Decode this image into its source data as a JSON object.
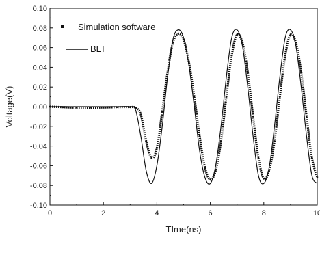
{
  "chart_data": {
    "type": "line",
    "xlabel": "TIme(ns)",
    "ylabel": "Voltage(V)",
    "xlim": [
      0,
      10
    ],
    "ylim": [
      -0.1,
      0.1
    ],
    "x_ticks": [
      "0",
      "2",
      "4",
      "6",
      "8",
      "10"
    ],
    "y_ticks": [
      "-0.10",
      "-0.08",
      "-0.06",
      "-0.04",
      "-0.02",
      "0.00",
      "0.02",
      "0.04",
      "0.06",
      "0.08",
      "0.10"
    ],
    "grid": false,
    "legend": "top-left",
    "series": [
      {
        "name": "Simulation software",
        "style": "dotted-markers",
        "color": "#111111",
        "points": [
          [
            0.0,
            0.0
          ],
          [
            0.5,
            -0.0005
          ],
          [
            1.0,
            -0.001
          ],
          [
            1.5,
            -0.001
          ],
          [
            2.0,
            -0.0008
          ],
          [
            2.5,
            -0.0005
          ],
          [
            3.0,
            -0.0004
          ],
          [
            3.2,
            -0.001
          ],
          [
            3.4,
            -0.008
          ],
          [
            3.6,
            -0.035
          ],
          [
            3.8,
            -0.052
          ],
          [
            4.0,
            -0.042
          ],
          [
            4.2,
            -0.005
          ],
          [
            4.4,
            0.035
          ],
          [
            4.6,
            0.065
          ],
          [
            4.8,
            0.074
          ],
          [
            5.0,
            0.068
          ],
          [
            5.2,
            0.045
          ],
          [
            5.4,
            0.01
          ],
          [
            5.6,
            -0.03
          ],
          [
            5.8,
            -0.062
          ],
          [
            6.0,
            -0.074
          ],
          [
            6.2,
            -0.065
          ],
          [
            6.4,
            -0.035
          ],
          [
            6.6,
            0.01
          ],
          [
            6.8,
            0.052
          ],
          [
            7.0,
            0.073
          ],
          [
            7.2,
            0.065
          ],
          [
            7.4,
            0.035
          ],
          [
            7.6,
            -0.01
          ],
          [
            7.8,
            -0.052
          ],
          [
            8.0,
            -0.073
          ],
          [
            8.2,
            -0.065
          ],
          [
            8.4,
            -0.035
          ],
          [
            8.6,
            0.01
          ],
          [
            8.8,
            0.052
          ],
          [
            9.0,
            0.073
          ],
          [
            9.2,
            0.065
          ],
          [
            9.4,
            0.035
          ],
          [
            9.6,
            -0.01
          ],
          [
            9.8,
            -0.052
          ],
          [
            10.0,
            -0.072
          ]
        ]
      },
      {
        "name": "BLT",
        "style": "solid",
        "color": "#111111",
        "points": [
          [
            0.0,
            0.0
          ],
          [
            0.5,
            0.0
          ],
          [
            1.0,
            0.0
          ],
          [
            1.5,
            0.0
          ],
          [
            2.0,
            0.0
          ],
          [
            2.5,
            0.0
          ],
          [
            3.0,
            0.0
          ],
          [
            3.2,
            -0.003
          ],
          [
            3.4,
            -0.03
          ],
          [
            3.6,
            -0.065
          ],
          [
            3.8,
            -0.078
          ],
          [
            4.0,
            -0.06
          ],
          [
            4.2,
            -0.02
          ],
          [
            4.4,
            0.03
          ],
          [
            4.6,
            0.068
          ],
          [
            4.8,
            0.078
          ],
          [
            5.0,
            0.07
          ],
          [
            5.2,
            0.042
          ],
          [
            5.4,
            0.0
          ],
          [
            5.6,
            -0.045
          ],
          [
            5.8,
            -0.072
          ],
          [
            6.0,
            -0.078
          ],
          [
            6.2,
            -0.06
          ],
          [
            6.4,
            -0.02
          ],
          [
            6.6,
            0.03
          ],
          [
            6.8,
            0.07
          ],
          [
            7.0,
            0.078
          ],
          [
            7.2,
            0.062
          ],
          [
            7.4,
            0.02
          ],
          [
            7.6,
            -0.03
          ],
          [
            7.8,
            -0.07
          ],
          [
            8.0,
            -0.078
          ],
          [
            8.2,
            -0.062
          ],
          [
            8.4,
            -0.02
          ],
          [
            8.6,
            0.03
          ],
          [
            8.8,
            0.07
          ],
          [
            9.0,
            0.078
          ],
          [
            9.2,
            0.062
          ],
          [
            9.4,
            0.02
          ],
          [
            9.6,
            -0.03
          ],
          [
            9.8,
            -0.07
          ],
          [
            10.0,
            -0.078
          ]
        ]
      }
    ]
  }
}
